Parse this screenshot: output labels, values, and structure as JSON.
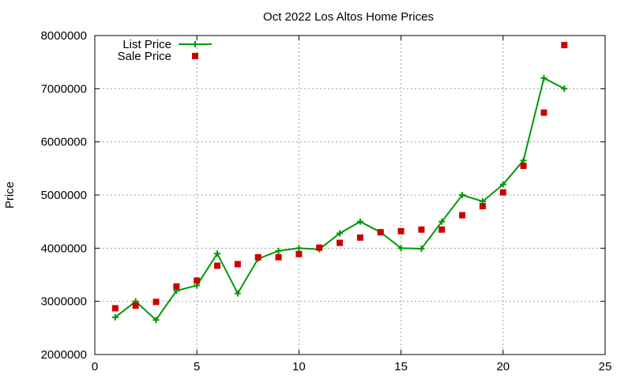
{
  "chart_data": {
    "type": "line",
    "title": "Oct 2022 Los Altos Home Prices",
    "xlabel": "",
    "ylabel": "Price",
    "xlim": [
      0,
      25
    ],
    "ylim": [
      2000000,
      8000000
    ],
    "xticks": [
      0,
      5,
      10,
      15,
      20,
      25
    ],
    "yticks": [
      2000000,
      3000000,
      4000000,
      5000000,
      6000000,
      7000000,
      8000000
    ],
    "grid": true,
    "legend_position": "top-left",
    "series": [
      {
        "name": "List Price",
        "style": "line+plus-markers",
        "color": "#009900",
        "points": [
          [
            1,
            2700000
          ],
          [
            2,
            3000000
          ],
          [
            3,
            2650000
          ],
          [
            4,
            3200000
          ],
          [
            5,
            3300000
          ],
          [
            6,
            3900000
          ],
          [
            7,
            3150000
          ],
          [
            8,
            3800000
          ],
          [
            9,
            3950000
          ],
          [
            10,
            4000000
          ],
          [
            11,
            3980000
          ],
          [
            12,
            4280000
          ],
          [
            13,
            4500000
          ],
          [
            14,
            4300000
          ],
          [
            15,
            4000000
          ],
          [
            16,
            3990000
          ],
          [
            17,
            4500000
          ],
          [
            18,
            5000000
          ],
          [
            19,
            4880000
          ],
          [
            20,
            5200000
          ],
          [
            21,
            5650000
          ],
          [
            22,
            7200000
          ],
          [
            23,
            7000000
          ]
        ]
      },
      {
        "name": "Sale Price",
        "style": "square-markers",
        "color": "#cc0000",
        "points": [
          [
            1,
            2870000
          ],
          [
            2,
            2920000
          ],
          [
            3,
            2990000
          ],
          [
            4,
            3280000
          ],
          [
            5,
            3390000
          ],
          [
            6,
            3670000
          ],
          [
            7,
            3700000
          ],
          [
            8,
            3830000
          ],
          [
            9,
            3830000
          ],
          [
            10,
            3890000
          ],
          [
            11,
            4010000
          ],
          [
            12,
            4100000
          ],
          [
            13,
            4200000
          ],
          [
            14,
            4300000
          ],
          [
            15,
            4320000
          ],
          [
            16,
            4350000
          ],
          [
            17,
            4350000
          ],
          [
            18,
            4620000
          ],
          [
            19,
            4790000
          ],
          [
            20,
            5050000
          ],
          [
            21,
            5550000
          ],
          [
            22,
            6550000
          ],
          [
            23,
            7820000
          ]
        ]
      }
    ]
  }
}
